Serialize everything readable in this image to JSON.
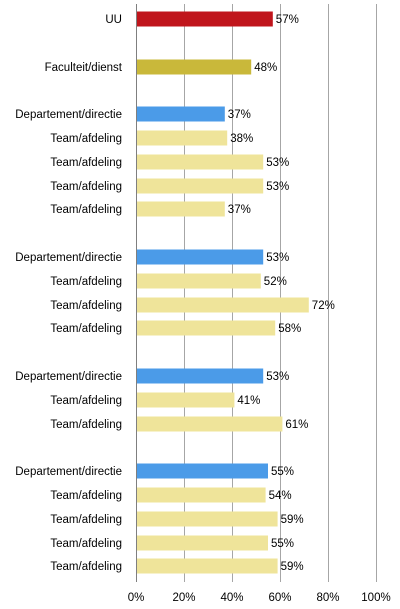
{
  "chart_data": {
    "type": "bar",
    "orientation": "horizontal",
    "xlim": [
      0,
      100
    ],
    "x_ticks": [
      "0%",
      "20%",
      "40%",
      "60%",
      "80%",
      "100%"
    ],
    "grid": true,
    "categories": [
      "UU",
      "Faculteit/dienst",
      "Departement/directie",
      "Team/afdeling",
      "Team/afdeling",
      "Team/afdeling",
      "Team/afdeling",
      "Departement/directie",
      "Team/afdeling",
      "Team/afdeling",
      "Team/afdeling",
      "Departement/directie",
      "Team/afdeling",
      "Team/afdeling",
      "Departement/directie",
      "Team/afdeling",
      "Team/afdeling",
      "Team/afdeling",
      "Team/afdeling"
    ],
    "values": [
      57,
      48,
      37,
      38,
      53,
      53,
      37,
      53,
      52,
      72,
      58,
      53,
      41,
      61,
      55,
      54,
      59,
      55,
      59
    ],
    "value_labels": [
      "57%",
      "48%",
      "37%",
      "38%",
      "53%",
      "53%",
      "37%",
      "53%",
      "52%",
      "72%",
      "58%",
      "53%",
      "41%",
      "61%",
      "55%",
      "54%",
      "59%",
      "55%",
      "59%"
    ],
    "levels": [
      "UU",
      "Faculteit/dienst",
      "Departement/directie",
      "Team/afdeling",
      "Team/afdeling",
      "Team/afdeling",
      "Team/afdeling",
      "Departement/directie",
      "Team/afdeling",
      "Team/afdeling",
      "Team/afdeling",
      "Departement/directie",
      "Team/afdeling",
      "Team/afdeling",
      "Departement/directie",
      "Team/afdeling",
      "Team/afdeling",
      "Team/afdeling",
      "Team/afdeling"
    ],
    "colors": {
      "UU": "#c0151c",
      "Faculteit/dienst": "#c9b83a",
      "Departement/directie": "#4b9be8",
      "Team/afdeling": "#efe49a"
    }
  }
}
